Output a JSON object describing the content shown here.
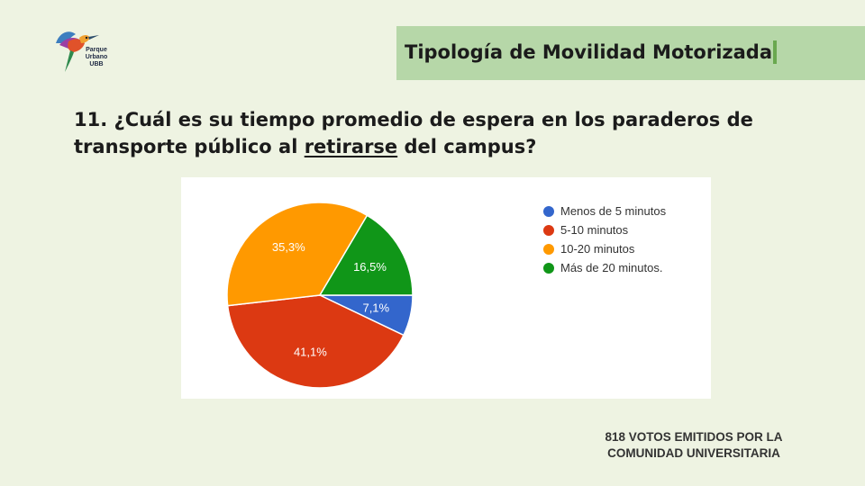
{
  "logo": {
    "line1": "Parque",
    "line2": "Urbano",
    "line3": "UBB",
    "icon": "hummingbird-logo-icon"
  },
  "header": {
    "title": "Tipología de Movilidad Motorizada"
  },
  "question": {
    "prefix": "11. ¿Cuál es su tiempo promedio de espera en los paraderos de transporte público al ",
    "emphasis": "retirarse",
    "suffix": " del campus?"
  },
  "footer": {
    "line1": "818  VOTOS EMITIDOS POR LA",
    "line2": "COMUNIDAD UNIVERSITARIA"
  },
  "chart_data": {
    "type": "pie",
    "title": "",
    "legend_position": "right",
    "slices": [
      {
        "label": "Menos de 5 minutos",
        "value": 7.1,
        "value_label": "7,1%",
        "color": "#3366cc"
      },
      {
        "label": "5-10 minutos",
        "value": 41.1,
        "value_label": "41,1%",
        "color": "#dc3912"
      },
      {
        "label": "10-20 minutos",
        "value": 35.3,
        "value_label": "35,3%",
        "color": "#ff9900"
      },
      {
        "label": "Más de 20 minutos.",
        "value": 16.5,
        "value_label": "16,5%",
        "color": "#109618"
      }
    ]
  }
}
